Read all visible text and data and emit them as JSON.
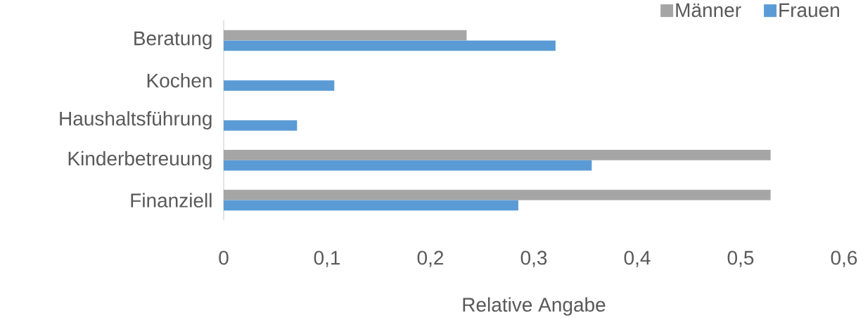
{
  "chart_data": {
    "type": "bar",
    "orientation": "horizontal",
    "xlabel": "Relative Angabe",
    "legend": "top right",
    "categories": [
      "Beratung",
      "Kochen",
      "Haushaltsführung",
      "Kinderbetreuung",
      "Finanziell"
    ],
    "series": [
      {
        "name": "Männer",
        "color": "#a5a5a5",
        "values": [
          0.235,
          0,
          0,
          0.529,
          0.529
        ]
      },
      {
        "name": "Frauen",
        "color": "#5b9bd5",
        "values": [
          0.321,
          0.107,
          0.071,
          0.356,
          0.285
        ]
      }
    ],
    "xlim": [
      0,
      0.6
    ],
    "xticks": [
      0,
      {
        "value": 0.1,
        "label": "0,1"
      },
      {
        "value": 0.2,
        "label": "0,2"
      },
      {
        "value": 0.3,
        "label": "0,3"
      },
      {
        "value": 0.4,
        "label": "0,4"
      },
      {
        "value": 0.5,
        "label": "0,5"
      },
      {
        "value": 0.6,
        "label": "0,6"
      }
    ]
  }
}
